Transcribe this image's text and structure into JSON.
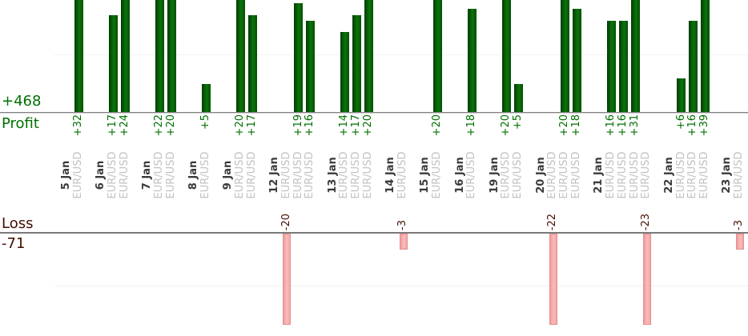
{
  "chart_data": {
    "type": "bar",
    "title": "",
    "description": "Dual-panel trading results: profit bars above shared date axis, loss bars below; one bar per trade grouped by date",
    "profit": {
      "axis_label": "Profit",
      "total_label": "+468",
      "gridline_values": [
        10
      ]
    },
    "loss": {
      "axis_label": "Loss",
      "total_label": "-71",
      "gridline_values": [
        -10
      ]
    },
    "colors": {
      "profit_text": "#007000",
      "loss_text": "#450c02",
      "profit_bar": "#0c730c",
      "loss_bar": "#f9b0b0",
      "date_text": "#3a3a3a",
      "symbol_text": "#c2c2c2",
      "axis_line": "#828282",
      "gridline": "#f2f2f2"
    },
    "groups": [
      {
        "date": "5 Jan",
        "trades": [
          {
            "symbol": "EUR/USD",
            "value": 32,
            "label": "+32"
          }
        ]
      },
      {
        "date": "6 Jan",
        "trades": [
          {
            "symbol": "EUR/USD",
            "value": 17,
            "label": "+17"
          },
          {
            "symbol": "EUR/USD",
            "value": 24,
            "label": "+24"
          }
        ]
      },
      {
        "date": "7 Jan",
        "trades": [
          {
            "symbol": "EUR/USD",
            "value": 22,
            "label": "+22"
          },
          {
            "symbol": "EUR/USD",
            "value": 20,
            "label": "+20"
          }
        ]
      },
      {
        "date": "8 Jan",
        "trades": [
          {
            "symbol": "EUR/USD",
            "value": 5,
            "label": "+5"
          }
        ]
      },
      {
        "date": "9 Jan",
        "trades": [
          {
            "symbol": "EUR/USD",
            "value": 20,
            "label": "+20"
          },
          {
            "symbol": "EUR/USD",
            "value": 17,
            "label": "+17"
          }
        ]
      },
      {
        "date": "12 Jan",
        "trades": [
          {
            "symbol": "EUR/USD",
            "value": -20,
            "label": "-20"
          },
          {
            "symbol": "EUR/USD",
            "value": 19,
            "label": "+19"
          },
          {
            "symbol": "EUR/USD",
            "value": 16,
            "label": "+16"
          }
        ]
      },
      {
        "date": "13 Jan",
        "trades": [
          {
            "symbol": "EUR/USD",
            "value": 14,
            "label": "+14"
          },
          {
            "symbol": "EUR/USD",
            "value": 17,
            "label": "+17"
          },
          {
            "symbol": "EUR/USD",
            "value": 20,
            "label": "+20"
          }
        ]
      },
      {
        "date": "14 Jan",
        "trades": [
          {
            "symbol": "EUR/USD",
            "value": -3,
            "label": "-3"
          }
        ]
      },
      {
        "date": "15 Jan",
        "trades": [
          {
            "symbol": "EUR/USD",
            "value": 20,
            "label": "+20"
          }
        ]
      },
      {
        "date": "16 Jan",
        "trades": [
          {
            "symbol": "EUR/USD",
            "value": 18,
            "label": "+18"
          }
        ]
      },
      {
        "date": "19 Jan",
        "trades": [
          {
            "symbol": "EUR/USD",
            "value": 20,
            "label": "+20"
          },
          {
            "symbol": "EUR/USD",
            "value": 5,
            "label": "+5"
          }
        ]
      },
      {
        "date": "20 Jan",
        "trades": [
          {
            "symbol": "EUR/USD",
            "value": -22,
            "label": "-22"
          },
          {
            "symbol": "EUR/USD",
            "value": 20,
            "label": "+20"
          },
          {
            "symbol": "EUR/USD",
            "value": 18,
            "label": "+18"
          }
        ]
      },
      {
        "date": "21 Jan",
        "trades": [
          {
            "symbol": "EUR/USD",
            "value": 16,
            "label": "+16"
          },
          {
            "symbol": "EUR/USD",
            "value": 16,
            "label": "+16"
          },
          {
            "symbol": "EUR/USD",
            "value": 31,
            "label": "+31"
          },
          {
            "symbol": "EUR/USD",
            "value": -23,
            "label": "-23"
          }
        ]
      },
      {
        "date": "22 Jan",
        "trades": [
          {
            "symbol": "EUR/USD",
            "value": 6,
            "label": "+6"
          },
          {
            "symbol": "EUR/USD",
            "value": 16,
            "label": "+16"
          },
          {
            "symbol": "EUR/USD",
            "value": 39,
            "label": "+39"
          }
        ]
      },
      {
        "date": "23 Jan",
        "trades": [
          {
            "symbol": "EUR/USD",
            "value": -3,
            "label": "-3"
          }
        ]
      }
    ]
  }
}
